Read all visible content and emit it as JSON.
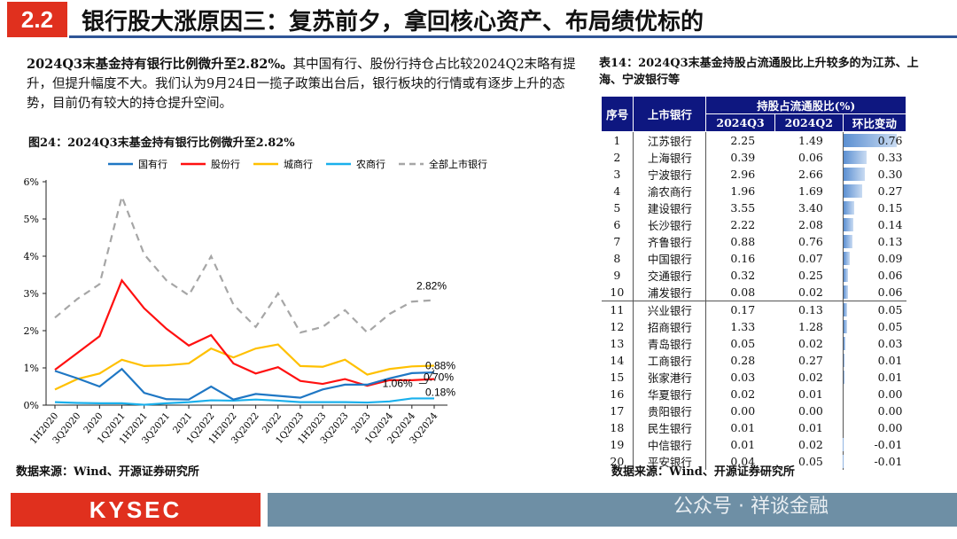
{
  "header": {
    "section": "2.2",
    "title": "银行股大涨原因三：复苏前夕，拿回核心资产、布局绩优标的"
  },
  "intro": {
    "bold": "2024Q3末基金持有银行比例微升至2.82%。",
    "text": "其中国有行、股份行持仓占比较2024Q2末略有提升，但提升幅度不大。我们认为9月24日一揽子政策出台后，银行板块的行情或有逐步上升的态势，目前仍有较大的持仓提升空间。"
  },
  "figure": {
    "title": "图24：2024Q3末基金持有银行比例微升至2.82%",
    "source": "数据来源：Wind、开源证券研究所"
  },
  "chart_data": {
    "type": "line",
    "categories": [
      "1H2020",
      "3Q2020",
      "2020",
      "1Q2021",
      "1H2021",
      "3Q2021",
      "2021",
      "1Q2022",
      "1H2022",
      "3Q2022",
      "2022",
      "1Q2023",
      "1H2023",
      "3Q2023",
      "2023",
      "1Q2024",
      "2Q2024",
      "3Q2024"
    ],
    "yticks": [
      "0%",
      "1%",
      "2%",
      "3%",
      "4%",
      "5%",
      "6%"
    ],
    "ylim": [
      0,
      6
    ],
    "unit": "%",
    "legend": "top",
    "grid": false,
    "series": [
      {
        "name": "国有行",
        "color": "#1f77c4",
        "dash": false,
        "values": [
          0.92,
          0.72,
          0.5,
          0.97,
          0.33,
          0.16,
          0.15,
          0.5,
          0.15,
          0.3,
          0.25,
          0.2,
          0.42,
          0.55,
          0.55,
          0.72,
          0.86,
          0.88
        ]
      },
      {
        "name": "股份行",
        "color": "#ff1010",
        "dash": false,
        "values": [
          0.95,
          1.4,
          1.85,
          3.35,
          2.6,
          2.05,
          1.6,
          1.88,
          1.12,
          0.85,
          1.02,
          0.65,
          0.57,
          0.7,
          0.52,
          0.67,
          0.67,
          0.7
        ]
      },
      {
        "name": "城商行",
        "color": "#ffc000",
        "dash": false,
        "values": [
          0.42,
          0.7,
          0.85,
          1.22,
          1.05,
          1.07,
          1.12,
          1.52,
          1.28,
          1.52,
          1.63,
          1.05,
          1.03,
          1.22,
          0.82,
          0.97,
          1.04,
          1.06
        ]
      },
      {
        "name": "农商行",
        "color": "#1ab0ec",
        "dash": false,
        "values": [
          0.08,
          0.06,
          0.05,
          0.05,
          0.01,
          0.05,
          0.08,
          0.13,
          0.12,
          0.15,
          0.12,
          0.08,
          0.08,
          0.08,
          0.07,
          0.1,
          0.18,
          0.18
        ]
      },
      {
        "name": "全部上市银行",
        "color": "#a6a6a6",
        "dash": true,
        "values": [
          2.35,
          2.85,
          3.25,
          5.6,
          4.05,
          3.35,
          2.95,
          4.0,
          2.7,
          2.1,
          3.0,
          1.95,
          2.1,
          2.55,
          1.95,
          2.45,
          2.78,
          2.82
        ]
      }
    ],
    "annotations": [
      "2.82%",
      "1.06%",
      "0.88%",
      "0.70%",
      "0.18%"
    ]
  },
  "table": {
    "title": "表14：2024Q3末基金持股占流通股比上升较多的为江苏、上海、宁波银行等",
    "headers": {
      "no": "序号",
      "bank": "上市银行",
      "group": "持股占流通股比(%)",
      "q3": "2024Q3",
      "q2": "2024Q2",
      "chg": "环比变动"
    },
    "rows": [
      [
        "1",
        "江苏银行",
        "2.25",
        "1.49",
        "0.76"
      ],
      [
        "2",
        "上海银行",
        "0.39",
        "0.06",
        "0.33"
      ],
      [
        "3",
        "宁波银行",
        "2.96",
        "2.66",
        "0.30"
      ],
      [
        "4",
        "渝农商行",
        "1.96",
        "1.69",
        "0.27"
      ],
      [
        "5",
        "建设银行",
        "3.55",
        "3.40",
        "0.15"
      ],
      [
        "6",
        "长沙银行",
        "2.22",
        "2.08",
        "0.14"
      ],
      [
        "7",
        "齐鲁银行",
        "0.88",
        "0.76",
        "0.13"
      ],
      [
        "8",
        "中国银行",
        "0.16",
        "0.07",
        "0.09"
      ],
      [
        "9",
        "交通银行",
        "0.32",
        "0.25",
        "0.06"
      ],
      [
        "10",
        "浦发银行",
        "0.08",
        "0.02",
        "0.06"
      ],
      [
        "11",
        "兴业银行",
        "0.17",
        "0.13",
        "0.05"
      ],
      [
        "12",
        "招商银行",
        "1.33",
        "1.28",
        "0.05"
      ],
      [
        "13",
        "青岛银行",
        "0.05",
        "0.02",
        "0.03"
      ],
      [
        "14",
        "工商银行",
        "0.28",
        "0.27",
        "0.01"
      ],
      [
        "15",
        "张家港行",
        "0.03",
        "0.02",
        "0.01"
      ],
      [
        "16",
        "华夏银行",
        "0.02",
        "0.01",
        "0.00"
      ],
      [
        "17",
        "贵阳银行",
        "0.00",
        "0.00",
        "0.00"
      ],
      [
        "18",
        "民生银行",
        "0.01",
        "0.01",
        "0.00"
      ],
      [
        "19",
        "中信银行",
        "0.01",
        "0.02",
        "-0.01"
      ],
      [
        "20",
        "平安银行",
        "0.04",
        "0.05",
        "-0.01"
      ]
    ],
    "source": "数据来源：Wind、开源证券研究所"
  },
  "footer": {
    "logo": "KYSEC",
    "watermark": "公众号 · 祥谈金融"
  }
}
